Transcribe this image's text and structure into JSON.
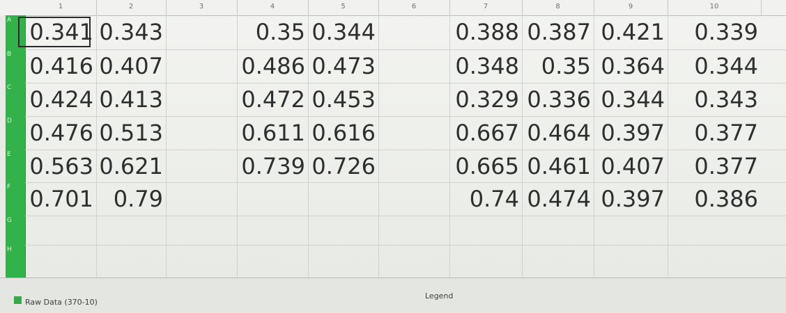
{
  "columns": [
    "1",
    "2",
    "3",
    "4",
    "5",
    "6",
    "7",
    "8",
    "9",
    "10"
  ],
  "rows": [
    "A",
    "B",
    "C",
    "D",
    "E",
    "F",
    "G",
    "H"
  ],
  "cells": [
    [
      "0.341",
      "0.343",
      "",
      "0.35",
      "0.344",
      "",
      "0.388",
      "0.387",
      "0.421",
      "0.339"
    ],
    [
      "0.416",
      "0.407",
      "",
      "0.486",
      "0.473",
      "",
      "0.348",
      "0.35",
      "0.364",
      "0.344"
    ],
    [
      "0.424",
      "0.413",
      "",
      "0.472",
      "0.453",
      "",
      "0.329",
      "0.336",
      "0.344",
      "0.343"
    ],
    [
      "0.476",
      "0.513",
      "",
      "0.611",
      "0.616",
      "",
      "0.667",
      "0.464",
      "0.397",
      "0.377"
    ],
    [
      "0.563",
      "0.621",
      "",
      "0.739",
      "0.726",
      "",
      "0.665",
      "0.461",
      "0.407",
      "0.377"
    ],
    [
      "0.701",
      "0.79",
      "",
      "",
      "",
      "",
      "0.74",
      "0.474",
      "0.397",
      "0.386"
    ],
    [
      "",
      "",
      "",
      "",
      "",
      "",
      "",
      "",
      "",
      ""
    ],
    [
      "",
      "",
      "",
      "",
      "",
      "",
      "",
      "",
      "",
      ""
    ]
  ],
  "selected_cell": "A1",
  "legend": {
    "title": "Legend",
    "items": [
      {
        "label": "Raw Data (370-10)",
        "color": "#35a84a"
      }
    ]
  }
}
